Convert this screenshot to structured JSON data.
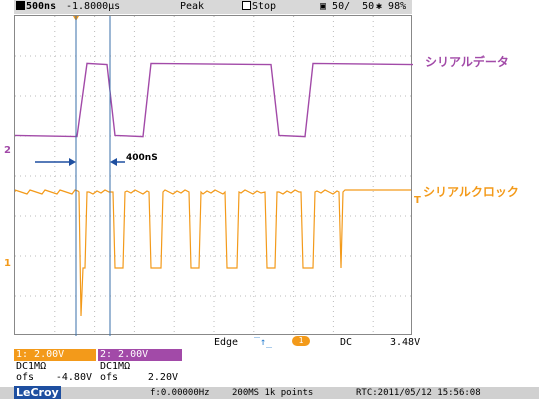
{
  "topbar": {
    "timebase": "500ns",
    "delay": "-1.8000µs",
    "mode": "Peak",
    "run_state": "Stop",
    "acq_count": "50/  50",
    "percent": "98%"
  },
  "traces": {
    "ch2_label": "シリアルデータ",
    "ch1_label": "シリアルクロック",
    "ch2_color": "#a24aa8",
    "ch1_color": "#f39a1a"
  },
  "marker_channel2": "2",
  "marker_channel1": "1",
  "marker_trig": "T",
  "annotation": {
    "text": "400nS"
  },
  "trigger": {
    "type": "Edge",
    "source": "1",
    "coupling": "DC",
    "level": "3.48V"
  },
  "ch1": {
    "header": "1: 2.00V",
    "coupling": "DC1MΩ",
    "ofs_label": "ofs",
    "ofs_value": "-4.80V"
  },
  "ch2": {
    "header": "2: 2.00V",
    "coupling": "DC1MΩ",
    "ofs_label": "ofs",
    "ofs_value": "2.20V"
  },
  "status": {
    "brand": "LeCroy",
    "freq": "f:0.00000Hz",
    "sample": "200MS 1k points",
    "rtc": "RTC:2011/05/12 15:56:08"
  }
}
